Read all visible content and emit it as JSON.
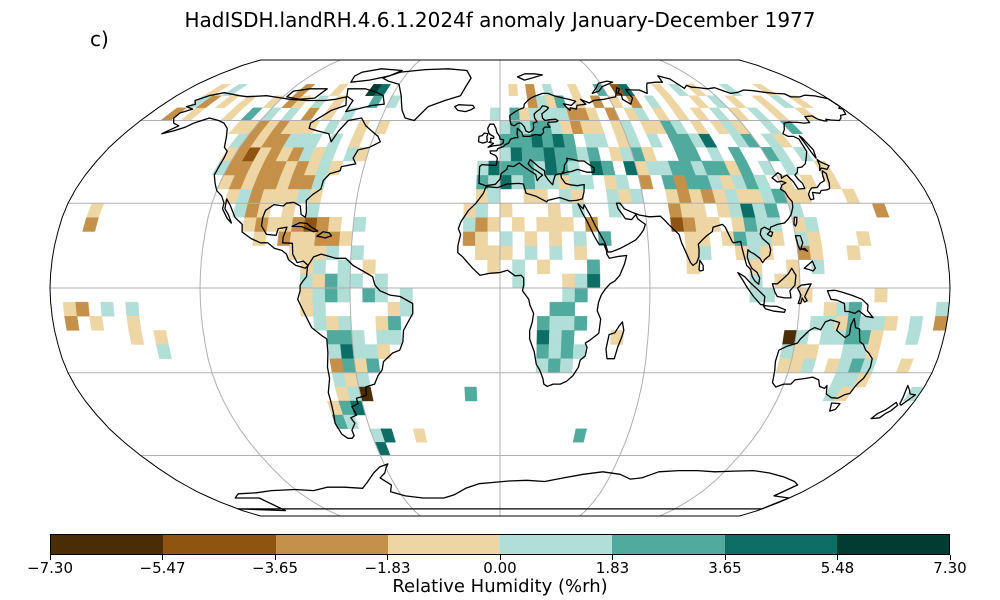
{
  "title": "HadISDH.landRH.4.6.1.2024f anomaly January-December 1977",
  "panel_label": "c)",
  "map": {
    "projection": "Robinson",
    "gridlines": true,
    "coastline_color": "#000000",
    "gridline_color": "#b0b0b0"
  },
  "colorbar": {
    "label": "Relative Humidity (%rh)",
    "colors": [
      "#4a2d07",
      "#8e5410",
      "#c5914a",
      "#edd6a3",
      "#b1dfd7",
      "#50aa9e",
      "#0d6e66",
      "#013b32"
    ],
    "tick_labels": [
      "−7.30",
      "−5.47",
      "−3.65",
      "−1.83",
      "0.00",
      "1.83",
      "3.65",
      "5.48",
      "7.30"
    ]
  }
}
